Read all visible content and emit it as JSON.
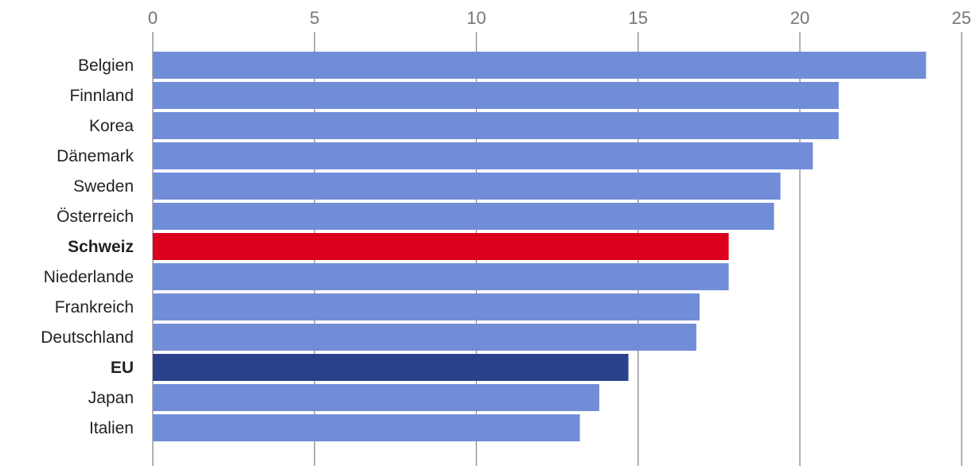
{
  "chart_data": {
    "type": "bar",
    "orientation": "horizontal",
    "title": "",
    "xlabel": "",
    "ylabel": "",
    "xlim": [
      0,
      25
    ],
    "x_ticks": [
      0,
      5,
      10,
      15,
      20,
      25
    ],
    "x_tick_position": "top",
    "grid": true,
    "categories": [
      "Belgien",
      "Finnland",
      "Korea",
      "Dänemark",
      "Sweden",
      "Österreich",
      "Schweiz",
      "Niederlande",
      "Frankreich",
      "Deutschland",
      "EU",
      "Japan",
      "Italien"
    ],
    "values": [
      23.9,
      21.2,
      21.2,
      20.4,
      19.4,
      19.2,
      17.8,
      17.8,
      16.9,
      16.8,
      14.7,
      13.8,
      13.2
    ],
    "bold_categories": [
      "Schweiz",
      "EU"
    ],
    "colors": {
      "default": "#728dd8",
      "Schweiz": "#dc001e",
      "EU": "#2a418c"
    }
  }
}
